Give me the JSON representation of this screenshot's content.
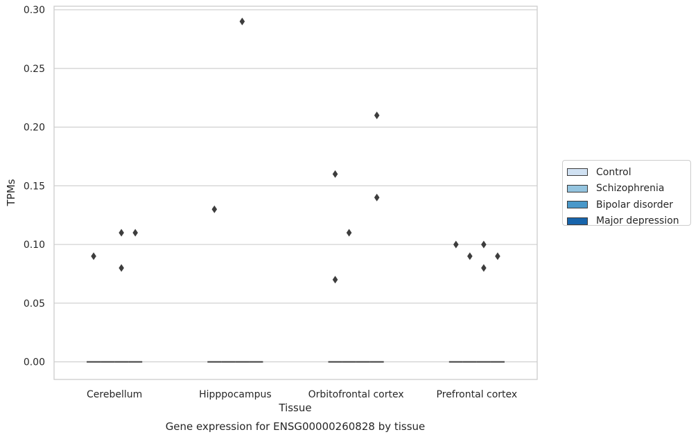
{
  "chart_data": {
    "type": "box",
    "caption": "Gene expression for ENSG00000260828 by tissue",
    "xlabel": "Tissue",
    "ylabel": "TPMs",
    "ylim": [
      -0.015,
      0.303
    ],
    "yticks": [
      "0.00",
      "0.05",
      "0.10",
      "0.15",
      "0.20",
      "0.25",
      "0.30"
    ],
    "grid": "horizontal",
    "legend_position": "right",
    "categories": [
      "Cerebellum",
      "Hipppocampus",
      "Orbitofrontal cortex",
      "Prefrontal cortex"
    ],
    "series": [
      {
        "name": "Control",
        "color": "#d0e1f2"
      },
      {
        "name": "Schizophrenia",
        "color": "#94c4df"
      },
      {
        "name": "Bipolar disorder",
        "color": "#4a98c9"
      },
      {
        "name": "Major depression",
        "color": "#1764ab"
      }
    ],
    "median": 0.0,
    "outliers": [
      {
        "tissue": "Cerebellum",
        "series": "Control",
        "values": [
          0.09
        ]
      },
      {
        "tissue": "Cerebellum",
        "series": "Bipolar disorder",
        "values": [
          0.11,
          0.08
        ]
      },
      {
        "tissue": "Cerebellum",
        "series": "Major depression",
        "values": [
          0.11
        ]
      },
      {
        "tissue": "Hipppocampus",
        "series": "Control",
        "values": [
          0.13
        ]
      },
      {
        "tissue": "Hipppocampus",
        "series": "Bipolar disorder",
        "values": [
          0.29
        ]
      },
      {
        "tissue": "Orbitofrontal cortex",
        "series": "Control",
        "values": [
          0.16,
          0.07
        ]
      },
      {
        "tissue": "Orbitofrontal cortex",
        "series": "Schizophrenia",
        "values": [
          0.11
        ]
      },
      {
        "tissue": "Orbitofrontal cortex",
        "series": "Major depression",
        "values": [
          0.21,
          0.14
        ]
      },
      {
        "tissue": "Prefrontal cortex",
        "series": "Control",
        "values": [
          0.1
        ]
      },
      {
        "tissue": "Prefrontal cortex",
        "series": "Schizophrenia",
        "values": [
          0.09
        ]
      },
      {
        "tissue": "Prefrontal cortex",
        "series": "Bipolar disorder",
        "values": [
          0.1,
          0.08
        ]
      },
      {
        "tissue": "Prefrontal cortex",
        "series": "Major depression",
        "values": [
          0.09
        ]
      }
    ]
  }
}
